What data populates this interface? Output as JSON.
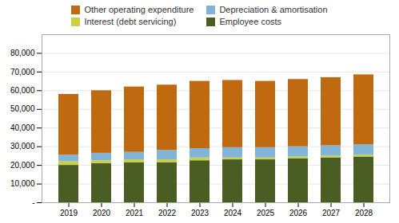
{
  "chart_data": {
    "type": "bar",
    "stacked": true,
    "categories": [
      "2019",
      "2020",
      "2021",
      "2022",
      "2023",
      "2024",
      "2025",
      "2026",
      "2027",
      "2028"
    ],
    "series": [
      {
        "name": "Employee costs",
        "color": "#4a5e23",
        "values": [
          20000,
          21000,
          21500,
          21500,
          22500,
          23000,
          23000,
          23500,
          24000,
          24500
        ]
      },
      {
        "name": "Interest (debt servicing)",
        "color": "#c9d045",
        "values": [
          2000,
          1500,
          1500,
          1500,
          1500,
          1000,
          1000,
          1000,
          1000,
          1000
        ]
      },
      {
        "name": "Depreciation & amortisation",
        "color": "#82b4d7",
        "values": [
          3500,
          4000,
          4000,
          5000,
          5000,
          5500,
          5500,
          5500,
          5500,
          5500
        ]
      },
      {
        "name": "Other operating expenditure",
        "color": "#bf6a10",
        "values": [
          32500,
          33500,
          35000,
          35000,
          36000,
          36000,
          35500,
          36000,
          36500,
          37500
        ]
      }
    ],
    "ylim": [
      0,
      90000
    ],
    "yticks": [
      {
        "value": 0,
        "label": "-"
      },
      {
        "value": 10000,
        "label": "10,000"
      },
      {
        "value": 20000,
        "label": "20,000"
      },
      {
        "value": 30000,
        "label": "30,000"
      },
      {
        "value": 40000,
        "label": "40,000"
      },
      {
        "value": 50000,
        "label": "50,000"
      },
      {
        "value": 60000,
        "label": "60,000"
      },
      {
        "value": 70000,
        "label": "70,000"
      },
      {
        "value": 80000,
        "label": "80,000"
      }
    ],
    "grid": true,
    "legend": "top"
  }
}
